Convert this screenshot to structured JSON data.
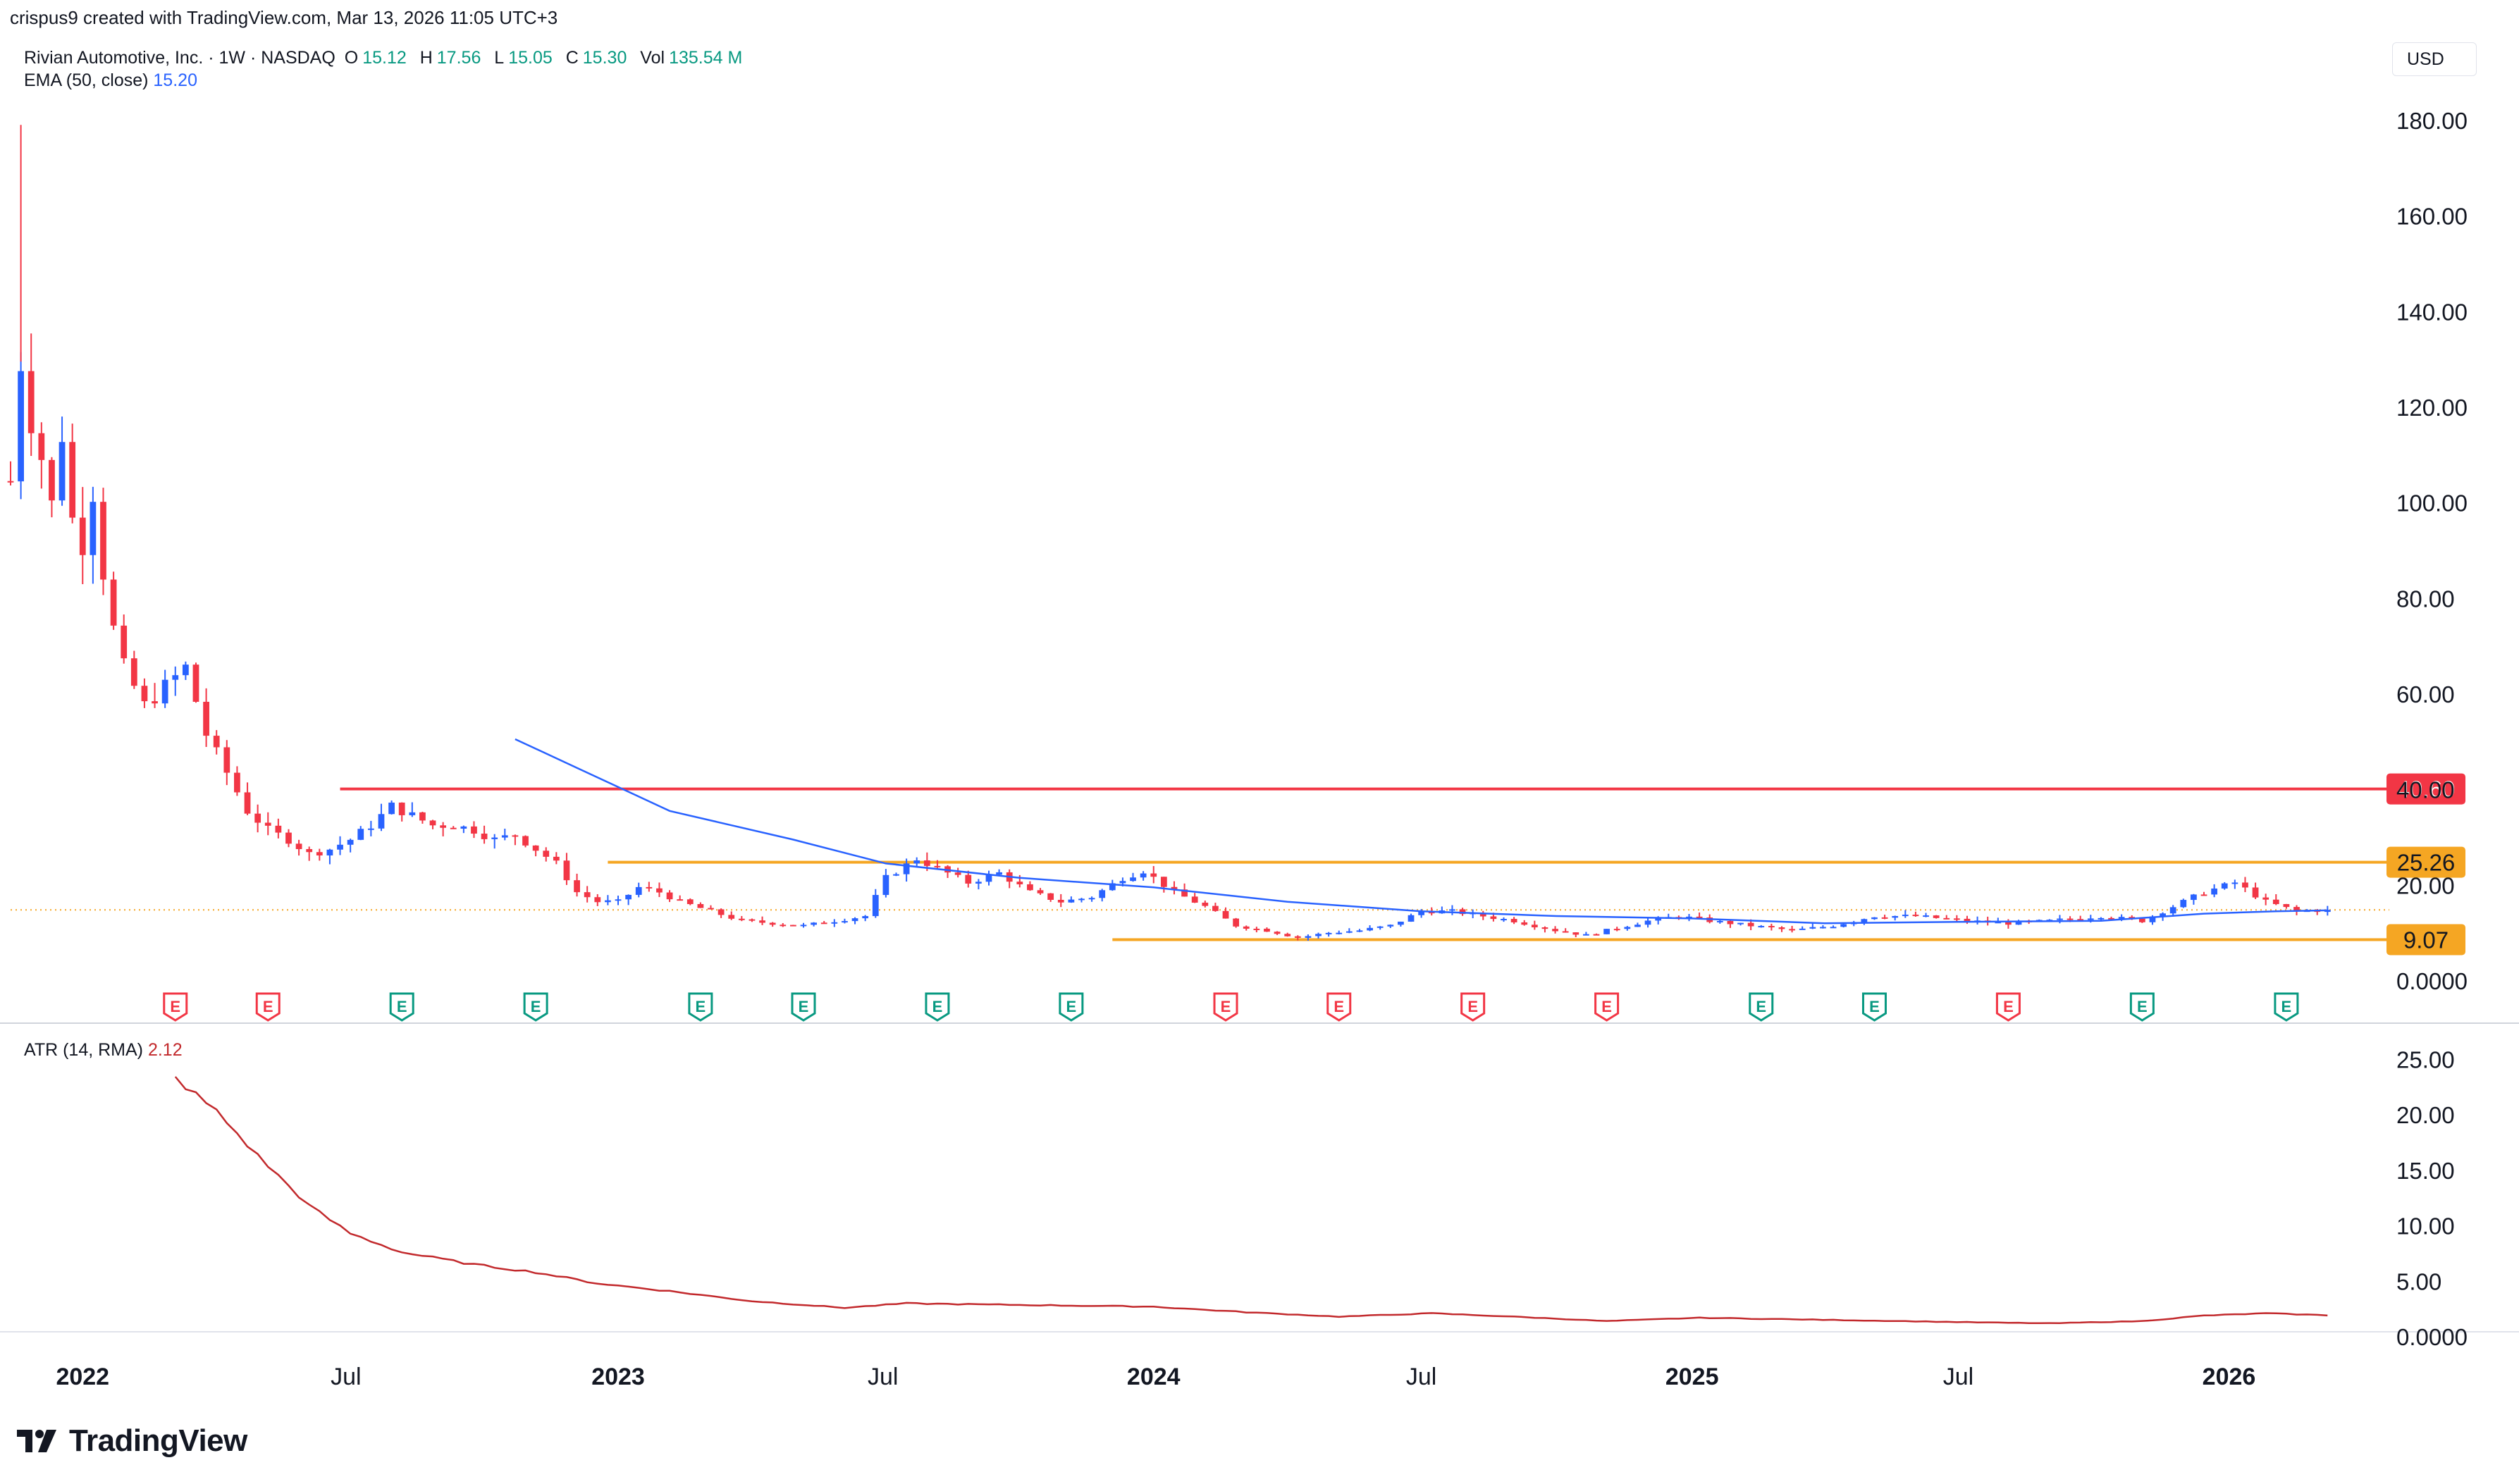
{
  "caption": "crispus9 created with TradingView.com, Mar 13, 2026 11:05 UTC+3",
  "symbol": {
    "title": "Rivian Automotive, Inc. · 1W · NASDAQ",
    "open_label": "O",
    "open": "15.12",
    "high_label": "H",
    "high": "17.56",
    "low_label": "L",
    "low": "15.05",
    "close_label": "C",
    "close": "15.30",
    "vol_label": "Vol",
    "vol": "135.54 M"
  },
  "ema": {
    "label": "EMA (50, close)",
    "value": "15.20"
  },
  "atr": {
    "label": "ATR (14, RMA)",
    "value": "2.12"
  },
  "currency": "USD",
  "brand": "TradingView",
  "colors": {
    "up": "#2962ff",
    "down": "#f23645",
    "ema": "#2962ff",
    "atr": "#c2292c",
    "resistance": "#f23645",
    "range": "#f5a623",
    "earnings_green": "#089981",
    "earnings_red": "#f23645"
  },
  "chart_data": [
    {
      "type": "candlestick",
      "series_name": "Rivian Automotive, Inc.",
      "ylim": [
        0,
        185
      ],
      "y_ticks": [
        "180.00",
        "160.00",
        "140.00",
        "120.00",
        "100.00",
        "80.00",
        "60.00",
        "40.00",
        "20.00",
        "0.0000"
      ],
      "y_tick_values": [
        180,
        160,
        140,
        120,
        100,
        80,
        60,
        40,
        20,
        0
      ],
      "x_range": [
        "2021-11-15",
        "2026-04-20"
      ],
      "x_ticks": [
        {
          "label": "2022",
          "date": "2022-01-03"
        },
        {
          "label": "Jul",
          "date": "2022-07-01"
        },
        {
          "label": "2023",
          "date": "2023-01-02"
        },
        {
          "label": "Jul",
          "date": "2023-07-01"
        },
        {
          "label": "2024",
          "date": "2024-01-01"
        },
        {
          "label": "Jul",
          "date": "2024-07-01"
        },
        {
          "label": "2025",
          "date": "2025-01-01"
        },
        {
          "label": "Jul",
          "date": "2025-07-01"
        },
        {
          "label": "2026",
          "date": "2026-01-01"
        }
      ],
      "price_keys": [
        [
          "2021-11-15",
          105
        ],
        [
          "2021-11-22",
          130
        ],
        [
          "2021-11-29",
          118
        ],
        [
          "2021-12-06",
          110
        ],
        [
          "2021-12-13",
          100
        ],
        [
          "2021-12-20",
          115
        ],
        [
          "2021-12-27",
          97
        ],
        [
          "2022-01-03",
          92
        ],
        [
          "2022-01-10",
          103
        ],
        [
          "2022-01-17",
          86
        ],
        [
          "2022-01-24",
          74
        ],
        [
          "2022-01-31",
          66
        ],
        [
          "2022-02-14",
          58
        ],
        [
          "2022-02-28",
          62
        ],
        [
          "2022-03-14",
          66
        ],
        [
          "2022-03-28",
          52
        ],
        [
          "2022-04-11",
          44
        ],
        [
          "2022-04-25",
          36
        ],
        [
          "2022-05-09",
          32
        ],
        [
          "2022-05-23",
          30
        ],
        [
          "2022-06-06",
          27
        ],
        [
          "2022-06-20",
          28
        ],
        [
          "2022-07-04",
          30
        ],
        [
          "2022-07-18",
          33
        ],
        [
          "2022-08-01",
          37
        ],
        [
          "2022-08-15",
          35
        ],
        [
          "2022-08-29",
          33
        ],
        [
          "2022-09-12",
          33
        ],
        [
          "2022-09-26",
          32
        ],
        [
          "2022-10-10",
          30
        ],
        [
          "2022-10-24",
          31
        ],
        [
          "2022-11-07",
          28
        ],
        [
          "2022-11-21",
          25
        ],
        [
          "2022-12-05",
          19
        ],
        [
          "2022-12-19",
          17
        ],
        [
          "2023-01-02",
          17
        ],
        [
          "2023-01-16",
          20
        ],
        [
          "2023-01-30",
          19
        ],
        [
          "2023-02-13",
          17
        ],
        [
          "2023-03-06",
          15
        ],
        [
          "2023-03-27",
          13
        ],
        [
          "2023-04-17",
          12.5
        ],
        [
          "2023-05-08",
          12
        ],
        [
          "2023-05-29",
          13
        ],
        [
          "2023-06-19",
          14
        ],
        [
          "2023-07-03",
          22
        ],
        [
          "2023-07-24",
          26
        ],
        [
          "2023-08-07",
          24
        ],
        [
          "2023-08-28",
          21
        ],
        [
          "2023-09-18",
          23
        ],
        [
          "2023-10-09",
          19
        ],
        [
          "2023-10-30",
          17
        ],
        [
          "2023-11-20",
          18
        ],
        [
          "2023-12-11",
          22
        ],
        [
          "2023-12-25",
          23.5
        ],
        [
          "2024-01-15",
          19
        ],
        [
          "2024-02-05",
          16
        ],
        [
          "2024-02-26",
          12
        ],
        [
          "2024-03-18",
          11
        ],
        [
          "2024-04-08",
          9.5
        ],
        [
          "2024-04-29",
          10.5
        ],
        [
          "2024-05-20",
          11
        ],
        [
          "2024-06-10",
          12
        ],
        [
          "2024-07-01",
          15
        ],
        [
          "2024-07-22",
          15
        ],
        [
          "2024-08-12",
          14
        ],
        [
          "2024-09-02",
          13
        ],
        [
          "2024-09-30",
          11
        ],
        [
          "2024-10-21",
          10
        ],
        [
          "2024-11-11",
          11.5
        ],
        [
          "2024-12-02",
          13
        ],
        [
          "2024-12-23",
          14
        ],
        [
          "2025-01-13",
          13
        ],
        [
          "2025-02-10",
          12
        ],
        [
          "2025-03-10",
          11
        ],
        [
          "2025-04-07",
          12
        ],
        [
          "2025-05-05",
          14
        ],
        [
          "2025-06-02",
          14
        ],
        [
          "2025-07-07",
          13
        ],
        [
          "2025-08-04",
          12.5
        ],
        [
          "2025-09-01",
          13
        ],
        [
          "2025-10-06",
          14
        ],
        [
          "2025-11-03",
          13
        ],
        [
          "2025-11-24",
          16
        ],
        [
          "2025-12-15",
          19
        ],
        [
          "2026-01-05",
          21
        ],
        [
          "2026-01-26",
          17
        ],
        [
          "2026-02-16",
          15
        ],
        [
          "2026-03-09",
          15.3
        ]
      ],
      "ema_50": [
        [
          "2022-10-24",
          51
        ],
        [
          "2022-12-05",
          45
        ],
        [
          "2023-02-06",
          36
        ],
        [
          "2023-05-01",
          30
        ],
        [
          "2023-07-03",
          25
        ],
        [
          "2023-10-02",
          22
        ],
        [
          "2024-01-01",
          20
        ],
        [
          "2024-04-01",
          17
        ],
        [
          "2024-07-01",
          15
        ],
        [
          "2024-10-01",
          14
        ],
        [
          "2025-01-01",
          13.5
        ],
        [
          "2025-04-01",
          12.5
        ],
        [
          "2025-07-01",
          12.8
        ],
        [
          "2025-10-06",
          13
        ],
        [
          "2025-12-15",
          14.5
        ],
        [
          "2026-02-02",
          15
        ],
        [
          "2026-03-09",
          15.2
        ]
      ],
      "horizontal_levels": [
        {
          "value": 40.6,
          "label": "40.60",
          "from": "2022-06-27"
        },
        {
          "value": 25.26,
          "label": "25.26",
          "from": "2022-12-26"
        },
        {
          "value": 9.07,
          "label": "9.07",
          "from": "2023-12-04"
        }
      ],
      "last_price": 15.3,
      "earnings_markers": [
        {
          "date": "2022-03-07",
          "result": "miss"
        },
        {
          "date": "2022-05-09",
          "result": "miss"
        },
        {
          "date": "2022-08-08",
          "result": "beat"
        },
        {
          "date": "2022-11-07",
          "result": "beat"
        },
        {
          "date": "2023-02-27",
          "result": "beat"
        },
        {
          "date": "2023-05-08",
          "result": "beat"
        },
        {
          "date": "2023-08-07",
          "result": "beat"
        },
        {
          "date": "2023-11-06",
          "result": "beat"
        },
        {
          "date": "2024-02-19",
          "result": "miss"
        },
        {
          "date": "2024-05-06",
          "result": "miss"
        },
        {
          "date": "2024-08-05",
          "result": "miss"
        },
        {
          "date": "2024-11-04",
          "result": "miss"
        },
        {
          "date": "2025-02-17",
          "result": "beat"
        },
        {
          "date": "2025-05-05",
          "result": "beat"
        },
        {
          "date": "2025-08-04",
          "result": "miss"
        },
        {
          "date": "2025-11-03",
          "result": "beat"
        },
        {
          "date": "2026-02-09",
          "result": "beat"
        }
      ],
      "earnings_marker_text": "E"
    },
    {
      "type": "line",
      "series_name": "ATR (14, RMA)",
      "ylim": [
        0,
        27
      ],
      "y_ticks": [
        "25.00",
        "20.00",
        "15.00",
        "10.00",
        "5.00",
        "0.0000"
      ],
      "y_tick_values": [
        25,
        20,
        15,
        10,
        5,
        0
      ],
      "points": [
        [
          "2022-03-07",
          23.5
        ],
        [
          "2022-04-04",
          20.5
        ],
        [
          "2022-05-02",
          16.5
        ],
        [
          "2022-06-06",
          12
        ],
        [
          "2022-07-04",
          9.5
        ],
        [
          "2022-08-08",
          7.8
        ],
        [
          "2022-09-26",
          6.7
        ],
        [
          "2022-11-07",
          6.0
        ],
        [
          "2022-12-19",
          5.0
        ],
        [
          "2023-02-06",
          4.3
        ],
        [
          "2023-04-03",
          3.4
        ],
        [
          "2023-06-05",
          2.8
        ],
        [
          "2023-07-17",
          3.2
        ],
        [
          "2023-09-04",
          3.1
        ],
        [
          "2023-11-06",
          3.0
        ],
        [
          "2024-01-01",
          2.9
        ],
        [
          "2024-03-04",
          2.4
        ],
        [
          "2024-05-06",
          2.0
        ],
        [
          "2024-07-08",
          2.3
        ],
        [
          "2024-09-02",
          2.0
        ],
        [
          "2024-11-04",
          1.6
        ],
        [
          "2025-01-06",
          1.9
        ],
        [
          "2025-04-07",
          1.7
        ],
        [
          "2025-07-07",
          1.5
        ],
        [
          "2025-09-01",
          1.4
        ],
        [
          "2025-11-03",
          1.6
        ],
        [
          "2025-12-15",
          2.1
        ],
        [
          "2026-01-26",
          2.3
        ],
        [
          "2026-03-09",
          2.12
        ]
      ]
    }
  ]
}
